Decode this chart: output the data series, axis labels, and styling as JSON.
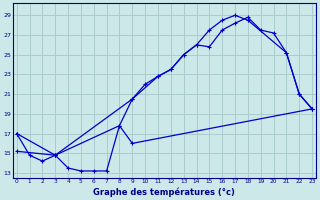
{
  "xlabel": "Graphe des températures (°c)",
  "bg_color": "#cde8e8",
  "grid_color": "#aacccc",
  "line_color": "#0000cc",
  "x_ticks": [
    0,
    1,
    2,
    3,
    4,
    5,
    6,
    7,
    8,
    9,
    10,
    11,
    12,
    13,
    14,
    15,
    16,
    17,
    18,
    19,
    20,
    21,
    22,
    23
  ],
  "y_ticks": [
    13,
    15,
    17,
    19,
    21,
    23,
    25,
    27,
    29
  ],
  "xlim": [
    -0.3,
    23.3
  ],
  "ylim": [
    12.5,
    30.2
  ],
  "line1_x": [
    0,
    1,
    2,
    3,
    4,
    5,
    6,
    7,
    8,
    9,
    10,
    11,
    12,
    13,
    14,
    15,
    16,
    17,
    18,
    21,
    22,
    23
  ],
  "line1_y": [
    17.0,
    14.8,
    14.2,
    14.8,
    13.5,
    13.2,
    13.2,
    13.2,
    17.8,
    20.5,
    22.0,
    22.8,
    23.5,
    25.0,
    26.0,
    27.5,
    28.5,
    29.0,
    28.5,
    25.2,
    21.0,
    19.5
  ],
  "line2_x": [
    0,
    3,
    9,
    11,
    12,
    13,
    14,
    15,
    16,
    17,
    18,
    19,
    20,
    21,
    22,
    23
  ],
  "line2_y": [
    17.0,
    14.8,
    20.5,
    22.8,
    23.5,
    25.0,
    26.0,
    25.8,
    27.5,
    28.2,
    28.8,
    27.5,
    27.2,
    25.2,
    21.0,
    19.5
  ],
  "line3_x": [
    0,
    3,
    8,
    9,
    23
  ],
  "line3_y": [
    15.2,
    14.8,
    17.8,
    16.0,
    19.5
  ]
}
